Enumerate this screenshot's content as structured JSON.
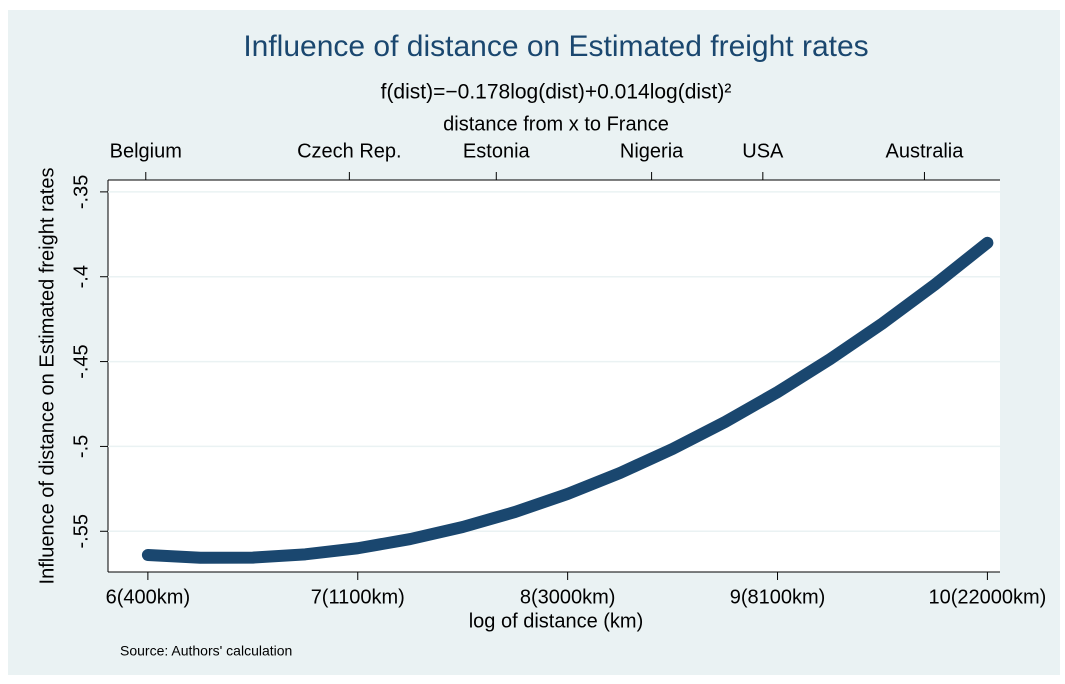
{
  "chart_data": {
    "type": "line",
    "title": "Influence of distance on Estimated freight rates",
    "subtitle": "f(dist)=−0.178log(dist)+0.014log(dist)²",
    "x2_label": "distance from x to France",
    "x_label": "log of distance (km)",
    "y_label": "Influence of distance on Estimated freight rates",
    "note": "Source: Authors' calculation",
    "x": [
      6,
      6.25,
      6.5,
      6.75,
      7,
      7.25,
      7.5,
      7.75,
      8,
      8.25,
      8.5,
      8.75,
      9,
      9.25,
      9.5,
      9.75,
      10
    ],
    "series": [
      {
        "color": "#1a476f",
        "values": [
          -0.564,
          -0.5656,
          -0.5655,
          -0.5636,
          -0.56,
          -0.5546,
          -0.5475,
          -0.5386,
          -0.528,
          -0.5156,
          -0.5015,
          -0.4856,
          -0.468,
          -0.4486,
          -0.4275,
          -0.4046,
          -0.38
        ]
      }
    ],
    "xlim": [
      5.81,
      10.06
    ],
    "ylim": [
      -0.574,
      -0.343
    ],
    "xticks": [
      {
        "value": 6,
        "label": "6(400km)"
      },
      {
        "value": 7,
        "label": "7(1100km)"
      },
      {
        "value": 8,
        "label": "8(3000km)"
      },
      {
        "value": 9,
        "label": "9(8100km)"
      },
      {
        "value": 10,
        "label": "10(22000km)"
      }
    ],
    "x2ticks": [
      {
        "value": 5.99,
        "label": "Belgium"
      },
      {
        "value": 6.96,
        "label": "Czech Rep."
      },
      {
        "value": 7.66,
        "label": "Estonia"
      },
      {
        "value": 8.4,
        "label": "Nigeria"
      },
      {
        "value": 8.93,
        "label": "USA"
      },
      {
        "value": 9.7,
        "label": "Australia"
      }
    ],
    "yticks": [
      {
        "value": -0.35,
        "label": "-.35"
      },
      {
        "value": -0.4,
        "label": "-.4"
      },
      {
        "value": -0.45,
        "label": "-.45"
      },
      {
        "value": -0.5,
        "label": "-.5"
      },
      {
        "value": -0.55,
        "label": "-.55"
      }
    ],
    "grid": true
  }
}
